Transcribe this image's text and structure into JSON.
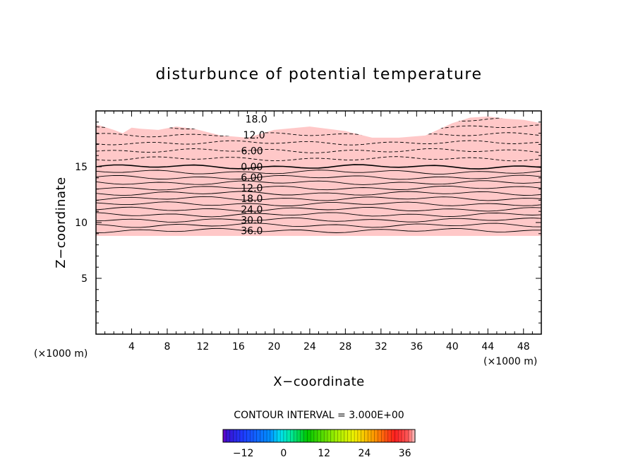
{
  "chart_data": {
    "type": "contour",
    "title": "disturbunce of potential temperature",
    "xlabel": "X−coordinate",
    "ylabel": "Z−coordinate",
    "x_unit": "(×1000 m)",
    "y_unit": "(×1000 m)",
    "xlim": [
      0,
      50
    ],
    "ylim": [
      0,
      20
    ],
    "x_ticks": [
      "4",
      "8",
      "12",
      "16",
      "20",
      "24",
      "28",
      "32",
      "36",
      "40",
      "44",
      "48"
    ],
    "x_tick_values": [
      4,
      8,
      12,
      16,
      20,
      24,
      28,
      32,
      36,
      40,
      44,
      48
    ],
    "y_ticks": [
      "5",
      "10",
      "15"
    ],
    "y_tick_values": [
      5,
      10,
      15
    ],
    "contour_interval_text": "CONTOUR INTERVAL = 3.000E+00",
    "contour_interval": 3.0,
    "contour_labels": [
      "18.0",
      "12.0",
      "6.00",
      "0.00",
      "6.00",
      "12.0",
      "18.0",
      "24.0",
      "30.0",
      "36.0"
    ],
    "contour_label_values": [
      -18,
      -12,
      -6,
      0,
      6,
      12,
      18,
      24,
      30,
      36
    ],
    "field_bottom_z": 8.8,
    "field_zero_z": 15.0,
    "field_top_profile": {
      "x": [
        0,
        2,
        3,
        4,
        5,
        7,
        9,
        11,
        14,
        17,
        20,
        24,
        28,
        31,
        34,
        37,
        40,
        42,
        44,
        46,
        48,
        50
      ],
      "z": [
        18.8,
        18.3,
        18.0,
        18.5,
        18.4,
        18.3,
        18.6,
        18.4,
        17.8,
        17.6,
        18.3,
        18.6,
        18.2,
        17.6,
        17.6,
        17.8,
        18.9,
        19.4,
        19.5,
        19.3,
        19.2,
        18.9
      ]
    },
    "colorbar": {
      "min": -18,
      "max": 39,
      "tick_labels": [
        "−12",
        "0",
        "12",
        "24",
        "36"
      ],
      "tick_values": [
        -12,
        0,
        12,
        24,
        36
      ]
    },
    "colors": {
      "purple": "#7b00c8",
      "blue": "#1e3cff",
      "cyan": "#00e0f0",
      "green": "#00c800",
      "yellow": "#f0f000",
      "orange": "#ff9600",
      "red": "#ff1e1e",
      "pink": "#ffc8c8"
    }
  }
}
